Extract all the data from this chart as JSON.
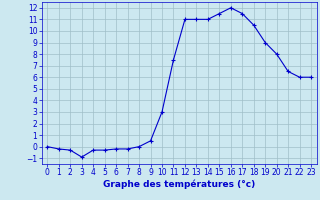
{
  "x": [
    0,
    1,
    2,
    3,
    4,
    5,
    6,
    7,
    8,
    9,
    10,
    11,
    12,
    13,
    14,
    15,
    16,
    17,
    18,
    19,
    20,
    21,
    22,
    23
  ],
  "y": [
    0.0,
    -0.2,
    -0.3,
    -0.9,
    -0.3,
    -0.3,
    -0.2,
    -0.2,
    0.0,
    0.5,
    3.0,
    7.5,
    11.0,
    11.0,
    11.0,
    11.5,
    12.0,
    11.5,
    10.5,
    9.0,
    8.0,
    6.5,
    6.0,
    6.0
  ],
  "line_color": "#0000cc",
  "marker": "+",
  "marker_size": 3,
  "bg_color": "#cce8f0",
  "grid_color": "#a0bfc8",
  "xlabel": "Graphe des températures (°c)",
  "xlabel_color": "#0000cc",
  "xlabel_fontsize": 6.5,
  "tick_color": "#0000cc",
  "tick_fontsize": 5.5,
  "xlim": [
    -0.5,
    23.5
  ],
  "ylim": [
    -1.5,
    12.5
  ],
  "yticks": [
    -1,
    0,
    1,
    2,
    3,
    4,
    5,
    6,
    7,
    8,
    9,
    10,
    11,
    12
  ],
  "xticks": [
    0,
    1,
    2,
    3,
    4,
    5,
    6,
    7,
    8,
    9,
    10,
    11,
    12,
    13,
    14,
    15,
    16,
    17,
    18,
    19,
    20,
    21,
    22,
    23
  ]
}
